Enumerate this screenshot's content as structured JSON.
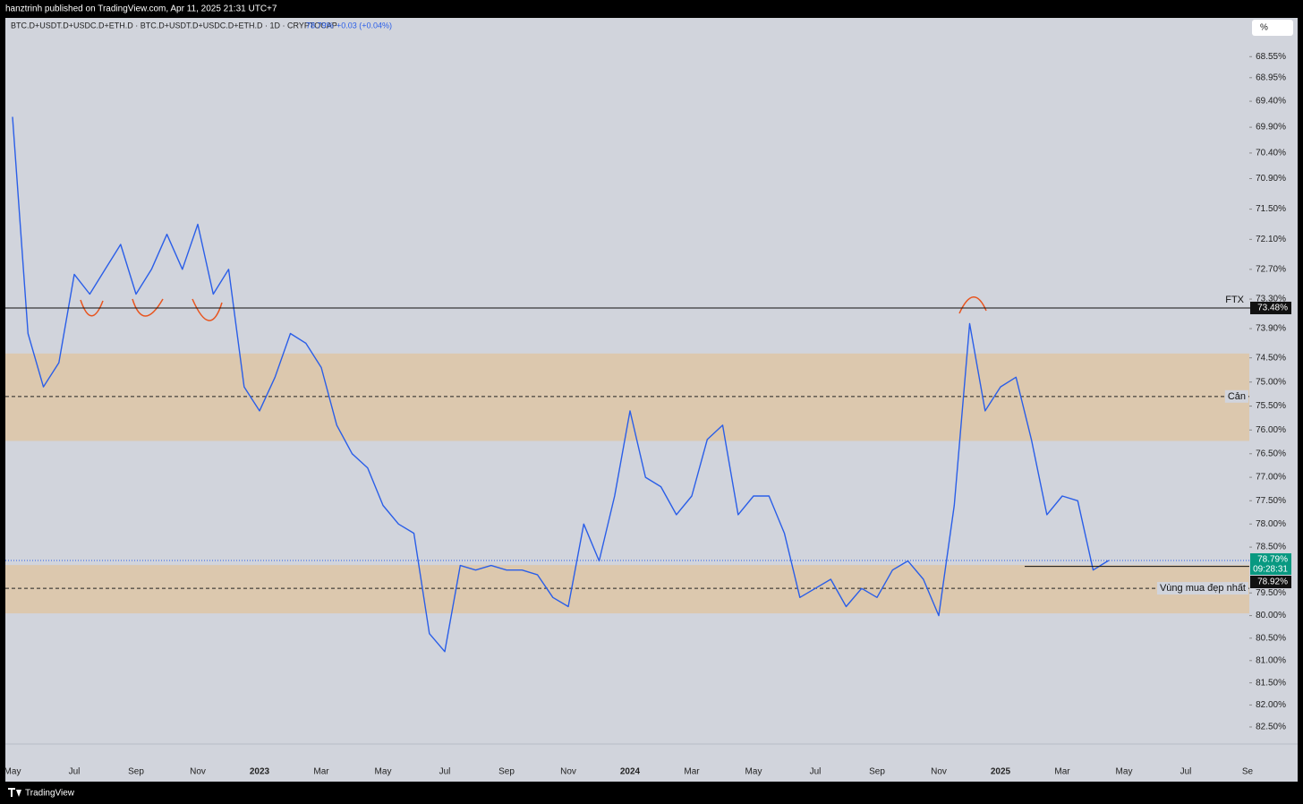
{
  "header": {
    "publisher": "hanztrinh published on TradingView.com, Apr 11, 2025 21:31 UTC+7",
    "symbol": "BTC.D+USDT.D+USDC.D+ETH.D · BTC.D+USDT.D+USDC.D+ETH.D · 1D · CRYPTOCAP",
    "change": "+0.03 (+0.04%)"
  },
  "scale_button": "%",
  "footer": {
    "brand": "TradingView"
  },
  "chart_data": {
    "type": "line",
    "color": "#2a5ee8",
    "log": true,
    "inverted": true,
    "grid": false,
    "categories": [
      "May",
      null,
      null,
      null,
      "Jul",
      null,
      null,
      null,
      "Sep",
      null,
      null,
      null,
      "Nov",
      null,
      null,
      null,
      "2023",
      null,
      null,
      null,
      "Mar",
      null,
      null,
      null,
      "May",
      null,
      null,
      null,
      "Jul",
      null,
      null,
      null,
      "Sep",
      null,
      null,
      null,
      "Nov",
      null,
      null,
      null,
      "2024",
      null,
      null,
      null,
      "Mar",
      null,
      null,
      null,
      "May",
      null,
      null,
      null,
      "Jul",
      null,
      null,
      null,
      "Sep",
      null,
      null,
      null,
      "Nov",
      null,
      null,
      null,
      "2025",
      null,
      null,
      null,
      "Mar",
      null,
      null,
      null,
      "May",
      null,
      null,
      null,
      "Jul",
      null,
      null,
      null,
      "Se"
    ],
    "values": [
      69.7,
      74.0,
      75.1,
      74.6,
      72.8,
      73.2,
      72.7,
      72.2,
      73.2,
      72.7,
      72.0,
      72.7,
      71.8,
      73.2,
      72.7,
      75.1,
      75.6,
      74.9,
      74.0,
      74.2,
      74.7,
      75.9,
      76.5,
      76.8,
      77.6,
      78.0,
      78.2,
      80.4,
      80.8,
      78.9,
      79.0,
      78.9,
      79.0,
      79.0,
      79.1,
      79.6,
      79.8,
      78.0,
      78.8,
      77.4,
      75.6,
      77.0,
      77.2,
      77.8,
      77.4,
      76.2,
      75.9,
      77.8,
      77.4,
      77.4,
      78.2,
      79.6,
      79.4,
      79.2,
      79.8,
      79.4,
      79.6,
      79.0,
      78.8,
      79.2,
      80.0,
      77.6,
      73.8,
      75.6,
      75.1,
      74.9,
      76.2,
      77.8,
      77.4,
      77.5,
      79.0,
      78.79,
      null,
      null,
      null,
      null,
      null,
      null,
      null,
      null,
      null
    ],
    "ylim": [
      67.82,
      82.91
    ],
    "yticks": [
      {
        "value": 68.55,
        "label": "68.55%"
      },
      {
        "value": 68.95,
        "label": "68.95%"
      },
      {
        "value": 69.4,
        "label": "69.40%"
      },
      {
        "value": 69.9,
        "label": "69.90%"
      },
      {
        "value": 70.4,
        "label": "70.40%"
      },
      {
        "value": 70.9,
        "label": "70.90%"
      },
      {
        "value": 71.5,
        "label": "71.50%"
      },
      {
        "value": 72.1,
        "label": "72.10%"
      },
      {
        "value": 72.7,
        "label": "72.70%"
      },
      {
        "value": 73.3,
        "label": "73.30%"
      },
      {
        "value": 73.9,
        "label": "73.90%"
      },
      {
        "value": 74.5,
        "label": "74.50%"
      },
      {
        "value": 75,
        "label": "75.00%"
      },
      {
        "value": 75.5,
        "label": "75.50%"
      },
      {
        "value": 76,
        "label": "76.00%"
      },
      {
        "value": 76.5,
        "label": "76.50%"
      },
      {
        "value": 77,
        "label": "77.00%"
      },
      {
        "value": 77.5,
        "label": "77.50%"
      },
      {
        "value": 78,
        "label": "78.00%"
      },
      {
        "value": 78.5,
        "label": "78.50%"
      },
      {
        "value": 79.5,
        "label": "79.50%"
      },
      {
        "value": 80,
        "label": "80.00%"
      },
      {
        "value": 80.5,
        "label": "80.50%"
      },
      {
        "value": 81,
        "label": "81.00%"
      },
      {
        "value": 81.5,
        "label": "81.50%"
      },
      {
        "value": 82,
        "label": "82.00%"
      },
      {
        "value": 82.5,
        "label": "82.50%"
      }
    ],
    "last_price": {
      "value": 78.79,
      "label": "78.79%",
      "countdown": "09:28:31",
      "color": "#089981"
    },
    "levels": [
      {
        "name": "FTX",
        "value": 73.48,
        "label": "73.48%"
      }
    ],
    "support": {
      "value": 78.92,
      "label": "78.92%"
    },
    "zones": [
      {
        "name": "Cản",
        "from": 74.41,
        "to": 76.23,
        "mid": 75.3,
        "color": "#dcc8ae"
      },
      {
        "name": "Vùng mua đẹp nhất",
        "from": 78.89,
        "to": 79.95,
        "mid": 79.4,
        "color": "#dcc8ae"
      }
    ]
  }
}
